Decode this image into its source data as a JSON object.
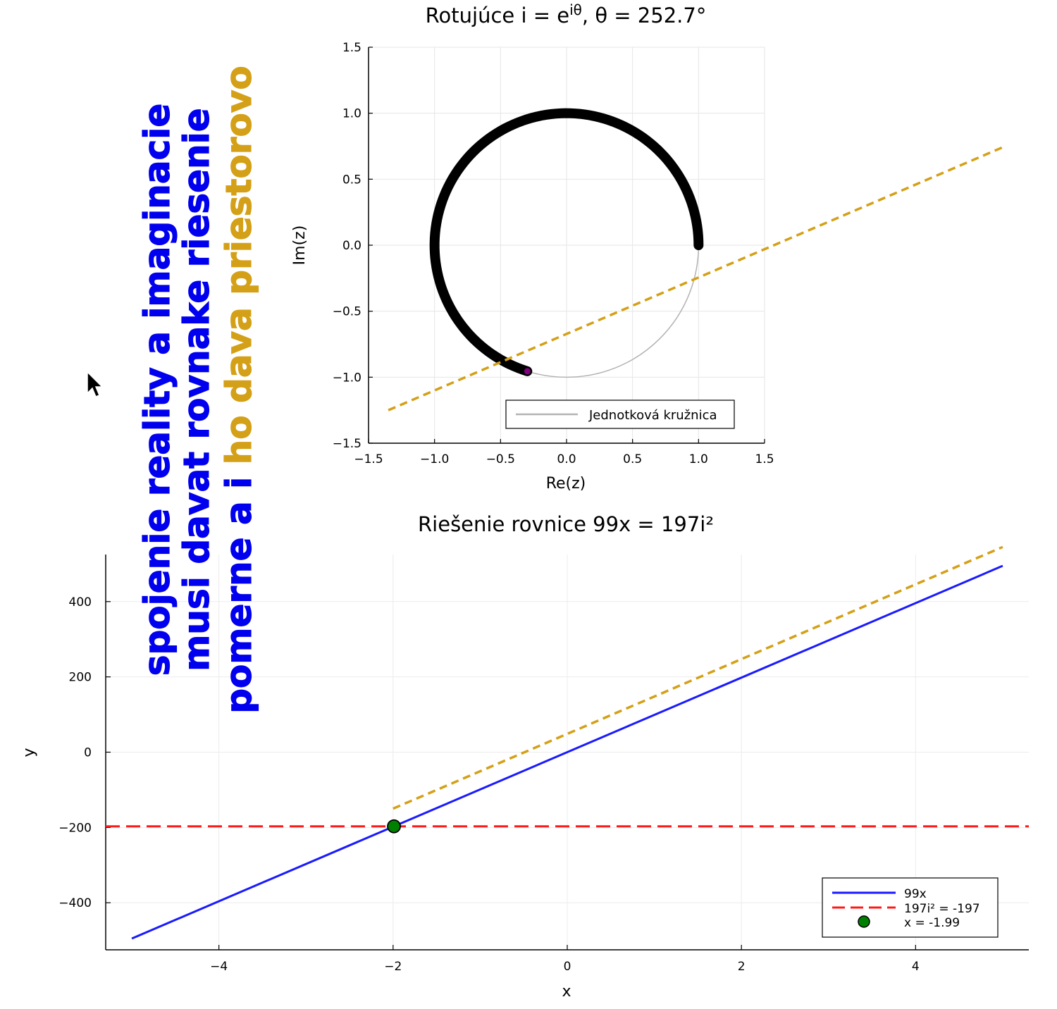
{
  "chart_data": [
    {
      "type": "line",
      "title_prefix": "Rotujúce i = e",
      "title_sup": "iθ",
      "title_suffix": ", θ = 252.7°",
      "xlabel": "Re(z)",
      "ylabel": "Im(z)",
      "xlim": [
        -1.5,
        1.5
      ],
      "ylim": [
        -1.5,
        1.5
      ],
      "xticks": [
        -1.5,
        -1.0,
        -0.5,
        0.0,
        0.5,
        1.0,
        1.5
      ],
      "yticks": [
        -1.5,
        -1.0,
        -0.5,
        0.0,
        0.5,
        1.0,
        1.5
      ],
      "xtick_labels": [
        "−1.5",
        "−1.0",
        "−0.5",
        "0.0",
        "0.5",
        "1.0",
        "1.5"
      ],
      "ytick_labels": [
        "−1.5",
        "−1.0",
        "−0.5",
        "0.0",
        "0.5",
        "1.0",
        "1.5"
      ],
      "grid": true,
      "legend_position": "bottom-right",
      "series": [
        {
          "name": "Jednotková kružnica",
          "color": "#b3b3b3",
          "kind": "unit-circle"
        },
        {
          "kind": "arc",
          "color": "#000000",
          "theta_start_deg": 0,
          "theta_end_deg": 252.7
        },
        {
          "kind": "point",
          "color": "#800080",
          "x": -0.297,
          "y": -0.955
        },
        {
          "kind": "dashed-line",
          "color": "#d4a017",
          "x": [
            -1.35,
            3.3
          ],
          "y": [
            -1.25,
            0.74
          ]
        }
      ]
    },
    {
      "type": "line",
      "title": "Riešenie rovnice 99x = 197i²",
      "xlabel": "x",
      "ylabel": "y",
      "xlim": [
        -5.3,
        5.3
      ],
      "ylim": [
        -525,
        525
      ],
      "xticks": [
        -4,
        -2,
        0,
        2,
        4
      ],
      "yticks": [
        -400,
        -200,
        0,
        200,
        400
      ],
      "xtick_labels": [
        "−4",
        "−2",
        "0",
        "2",
        "4"
      ],
      "ytick_labels": [
        "−400",
        "−200",
        "0",
        "200",
        "400"
      ],
      "grid": true,
      "legend_position": "bottom-right",
      "series": [
        {
          "name": "99x",
          "color": "#1a1aff",
          "x": [
            -5,
            5
          ],
          "y": [
            -495,
            495
          ]
        },
        {
          "name": "197i² = -197",
          "color": "#ff1a1a",
          "dashed": true,
          "x": [
            -5.3,
            5.3
          ],
          "y": [
            -197,
            -197
          ]
        },
        {
          "name": "x = -1.99",
          "color": "#008000",
          "point": true,
          "x": [
            -1.99
          ],
          "y": [
            -197
          ]
        },
        {
          "color": "#d4a017",
          "dashed": true,
          "x": [
            -2.0,
            5.0
          ],
          "y": [
            -150,
            545
          ]
        }
      ]
    }
  ],
  "annotation": {
    "lines": [
      {
        "text": "spojenie reality a imaginacie",
        "color": "#0000ee"
      },
      {
        "text": "musi davat rovnake riesenie",
        "color": "#0000ee"
      },
      {
        "parts": [
          {
            "text": "pomerne a i ",
            "color": "#0000ee"
          },
          {
            "text": "ho dava priestorovo",
            "color": "#d4a017"
          }
        ]
      }
    ]
  }
}
